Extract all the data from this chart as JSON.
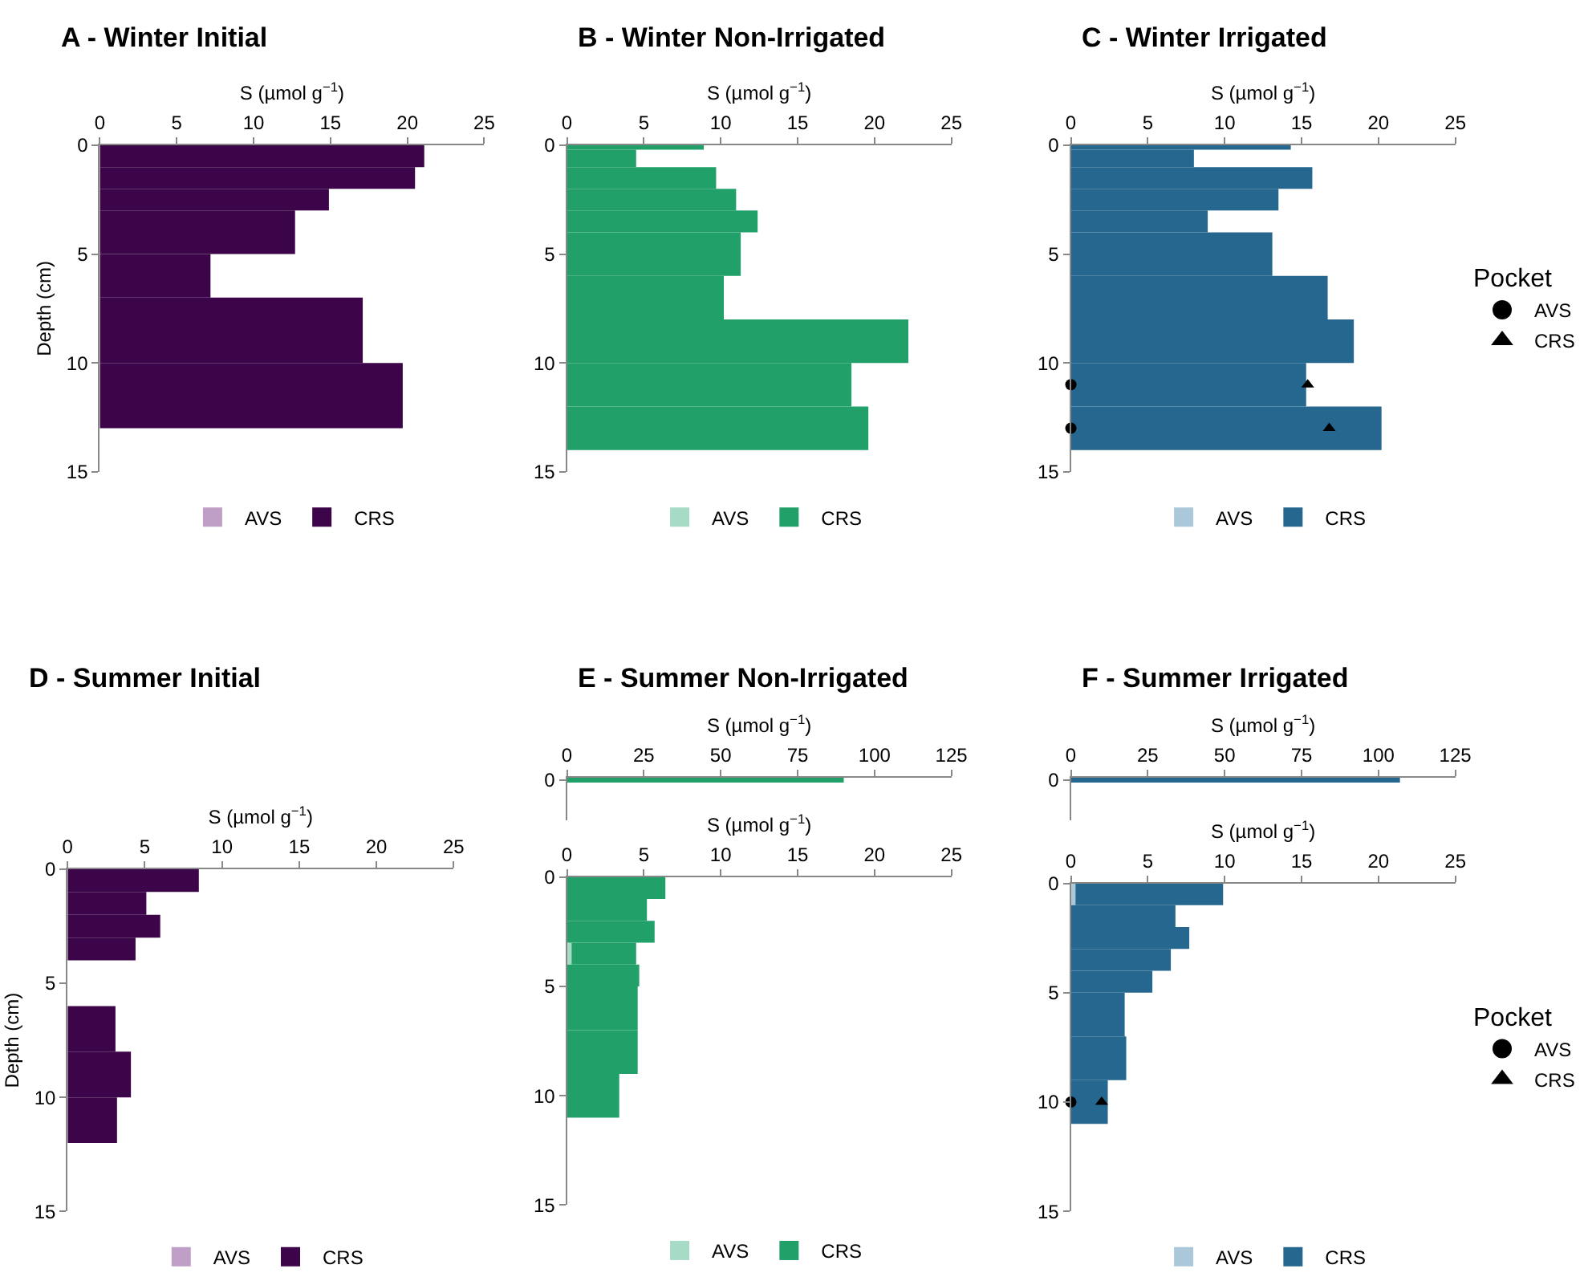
{
  "chart_data": [
    {
      "type": "bar",
      "orientation": "horizontal",
      "stacked": true,
      "title": "A - Winter Initial",
      "xlabel": "S (µmol g$^{−1}$)",
      "ylabel": "Depth (cm)",
      "x": [
        0.5,
        1.5,
        2.5,
        4,
        6,
        8.5,
        11.5
      ],
      "series": [
        {
          "name": "AVS",
          "color": "#bf9fc6",
          "values": [
            0,
            0,
            0,
            0,
            0,
            0,
            0
          ]
        },
        {
          "name": "CRS",
          "color": "#3d0549",
          "values": [
            21.1,
            20.5,
            14.9,
            12.7,
            7.2,
            17.1,
            19.7
          ]
        }
      ],
      "xlim": [
        0,
        25
      ],
      "xticks": [
        0,
        5,
        10,
        15,
        20,
        25
      ],
      "ylim": [
        15,
        0
      ],
      "yticks": [
        0,
        5,
        10,
        15
      ],
      "legend": "bottom"
    },
    {
      "type": "bar",
      "orientation": "horizontal",
      "stacked": true,
      "title": "B - Winter Non-Irrigated",
      "xlabel": "S (µmol g$^{−1}$)",
      "x": [
        0.1,
        0.6,
        1.5,
        2.5,
        3.5,
        5,
        7,
        9,
        11,
        13
      ],
      "series": [
        {
          "name": "AVS",
          "color": "#a6dcc6",
          "values": [
            0,
            0,
            0,
            0,
            0,
            0,
            0,
            0,
            0,
            0
          ]
        },
        {
          "name": "CRS",
          "color": "#21a06a",
          "values": [
            8.9,
            4.5,
            9.7,
            11.0,
            12.4,
            11.3,
            10.2,
            22.2,
            18.5,
            19.6
          ]
        }
      ],
      "xlim": [
        0,
        25
      ],
      "xticks": [
        0,
        5,
        10,
        15,
        20,
        25
      ],
      "ylim": [
        15,
        0
      ],
      "yticks": [
        0,
        5,
        10,
        15
      ],
      "legend": "bottom"
    },
    {
      "type": "bar",
      "orientation": "horizontal",
      "stacked": true,
      "title": "C - Winter Irrigated",
      "xlabel": "S (µmol g$^{−1}$)",
      "legend_title": "Pocket",
      "x": [
        0.1,
        0.6,
        1.5,
        2.5,
        3.5,
        5,
        7,
        9,
        11,
        13
      ],
      "series": [
        {
          "name": "AVS",
          "color": "#abc8da",
          "values": [
            0,
            0,
            0,
            0,
            0,
            0,
            0,
            0,
            0,
            0
          ]
        },
        {
          "name": "CRS",
          "color": "#26678f",
          "values": [
            14.3,
            8.0,
            15.7,
            13.5,
            8.9,
            13.1,
            16.7,
            18.4,
            15.3,
            20.2
          ]
        },
        {
          "type": "scatter",
          "name": "AVS",
          "color": "#000000",
          "marker": "circle",
          "x": [
            11,
            13
          ],
          "values": [
            0,
            0
          ]
        },
        {
          "type": "scatter",
          "name": "CRS",
          "color": "#000000",
          "marker": "triangle",
          "x": [
            11,
            13
          ],
          "values": [
            15.4,
            16.8
          ]
        }
      ],
      "xlim": [
        0,
        25
      ],
      "xticks": [
        0,
        5,
        10,
        15,
        20,
        25
      ],
      "ylim": [
        15,
        0
      ],
      "yticks": [
        0,
        5,
        10,
        15
      ],
      "legend": "bottom"
    },
    {
      "type": "bar",
      "orientation": "horizontal",
      "stacked": true,
      "title": "D - Summer Initial",
      "xlabel": "S (µmol g$^{−1}$)",
      "ylabel": "Depth (cm)",
      "x": [
        0.5,
        1.5,
        2.5,
        3.5,
        5,
        7,
        9,
        11
      ],
      "series": [
        {
          "name": "AVS",
          "color": "#bf9fc6",
          "values": [
            0,
            0,
            0,
            0,
            null,
            0,
            0,
            0
          ]
        },
        {
          "name": "CRS",
          "color": "#3d0549",
          "values": [
            8.5,
            5.1,
            6.0,
            4.4,
            null,
            3.1,
            4.1,
            3.2
          ]
        }
      ],
      "xlim": [
        0,
        25
      ],
      "xticks": [
        0,
        5,
        10,
        15,
        20,
        25
      ],
      "ylim": [
        15,
        0
      ],
      "yticks": [
        0,
        5,
        10,
        15
      ],
      "legend": "bottom"
    },
    {
      "type": "bar",
      "orientation": "horizontal",
      "title": "E - Summer Non-Irrigated",
      "xlabel": "S (µmol g$^{−1}$)",
      "categories": [
        "0"
      ],
      "series": [
        {
          "color": "#21a06a",
          "values": [
            90
          ]
        }
      ],
      "xlim": [
        0,
        125
      ],
      "xticks": [
        0,
        25,
        50,
        75,
        100,
        125
      ]
    },
    {
      "type": "bar",
      "orientation": "horizontal",
      "stacked": true,
      "xlabel": "S (µmol g$^{−1}$)",
      "x": [
        0.5,
        1.5,
        2.5,
        3.5,
        4.5,
        6,
        8,
        10
      ],
      "series": [
        {
          "name": "AVS",
          "color": "#a6dcc6",
          "values": [
            0,
            0,
            0,
            0.3,
            0,
            0,
            0,
            0
          ]
        },
        {
          "name": "CRS",
          "color": "#21a06a",
          "values": [
            6.4,
            5.2,
            5.7,
            4.2,
            4.7,
            4.6,
            4.6,
            3.4
          ]
        }
      ],
      "xlim": [
        0,
        25
      ],
      "xticks": [
        0,
        5,
        10,
        15,
        20,
        25
      ],
      "ylim": [
        15,
        0
      ],
      "yticks": [
        0,
        5,
        10,
        15
      ],
      "legend": "bottom"
    },
    {
      "type": "bar",
      "orientation": "horizontal",
      "title": "F - Summer Irrigated",
      "xlabel": "S (µmol g$^{−1}$)",
      "categories": [
        "0"
      ],
      "series": [
        {
          "color": "#26678f",
          "values": [
            107
          ]
        }
      ],
      "xlim": [
        0,
        125
      ],
      "xticks": [
        0,
        25,
        50,
        75,
        100,
        125
      ]
    },
    {
      "type": "bar",
      "orientation": "horizontal",
      "stacked": true,
      "xlabel": "S (µmol g$^{−1}$)",
      "legend_title": "Pocket",
      "x": [
        0.5,
        1.5,
        2.5,
        3.5,
        4.5,
        6,
        8,
        10
      ],
      "series": [
        {
          "name": "AVS",
          "color": "#abc8da",
          "values": [
            0.3,
            0,
            0,
            0,
            0,
            0,
            0,
            0
          ]
        },
        {
          "name": "CRS",
          "color": "#26678f",
          "values": [
            9.6,
            6.8,
            7.7,
            6.5,
            5.3,
            3.5,
            3.6,
            2.4
          ]
        },
        {
          "type": "scatter",
          "name": "AVS",
          "color": "#000000",
          "marker": "circle",
          "x": [
            10
          ],
          "values": [
            0
          ]
        },
        {
          "type": "scatter",
          "name": "CRS",
          "color": "#000000",
          "marker": "triangle",
          "x": [
            10
          ],
          "values": [
            2.0
          ]
        }
      ],
      "xlim": [
        0,
        25
      ],
      "xticks": [
        0,
        5,
        10,
        15,
        20,
        25
      ],
      "ylim": [
        15,
        0
      ],
      "yticks": [
        0,
        5,
        10,
        15
      ],
      "legend": "bottom"
    }
  ]
}
